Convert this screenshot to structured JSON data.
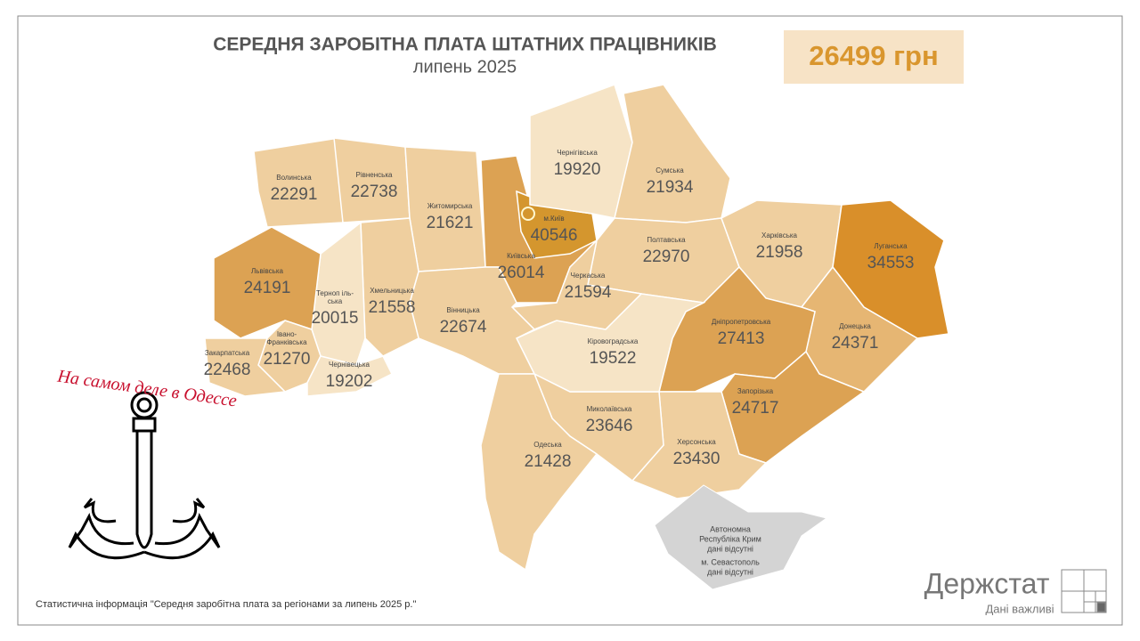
{
  "header": {
    "title": "СЕРЕДНЯ ЗАРОБІТНА ПЛАТА ШТАТНИХ ПРАЦІВНИКІВ",
    "subtitle": "липень 2025",
    "national_value": "26499 грн"
  },
  "regions": [
    {
      "name": [
        "Волинська"
      ],
      "value": 22291,
      "color": "#efcf9f"
    },
    {
      "name": [
        "Рівненська"
      ],
      "value": 22738,
      "color": "#efcf9f"
    },
    {
      "name": [
        "Житомирська"
      ],
      "value": 21621,
      "color": "#efcf9f"
    },
    {
      "name": [
        "Київська"
      ],
      "value": 26014,
      "color": "#dca253"
    },
    {
      "name": [
        "м.Київ"
      ],
      "value": 40546,
      "color": "#d4962e"
    },
    {
      "name": [
        "Чернігівська"
      ],
      "value": 19920,
      "color": "#f6e4c6"
    },
    {
      "name": [
        "Сумська"
      ],
      "value": 21934,
      "color": "#efcf9f"
    },
    {
      "name": [
        "Полтавська"
      ],
      "value": 22970,
      "color": "#efcf9f"
    },
    {
      "name": [
        "Харківська"
      ],
      "value": 21958,
      "color": "#efcf9f"
    },
    {
      "name": [
        "Луганська"
      ],
      "value": 34553,
      "color": "#d98f2a"
    },
    {
      "name": [
        "Донецька"
      ],
      "value": 24371,
      "color": "#e6b673"
    },
    {
      "name": [
        "Дніпропетровська"
      ],
      "value": 27413,
      "color": "#dca253"
    },
    {
      "name": [
        "Запорізька"
      ],
      "value": 24717,
      "color": "#dca253"
    },
    {
      "name": [
        "Херсонська"
      ],
      "value": 23430,
      "color": "#efcf9f"
    },
    {
      "name": [
        "Миколаївська"
      ],
      "value": 23646,
      "color": "#efcf9f"
    },
    {
      "name": [
        "Кіровоградська"
      ],
      "value": 19522,
      "color": "#f6e4c6"
    },
    {
      "name": [
        "Черкаська"
      ],
      "value": 21594,
      "color": "#efcf9f"
    },
    {
      "name": [
        "Вінницька"
      ],
      "value": 22674,
      "color": "#efcf9f"
    },
    {
      "name": [
        "Одеська"
      ],
      "value": 21428,
      "color": "#efcf9f"
    },
    {
      "name": [
        "Хмельницька"
      ],
      "value": 21558,
      "color": "#efcf9f"
    },
    {
      "name": [
        "Терноп іль-",
        "ська"
      ],
      "value": 20015,
      "color": "#f6e4c6"
    },
    {
      "name": [
        "Львівська"
      ],
      "value": 24191,
      "color": "#dca253"
    },
    {
      "name": [
        "Івано-",
        "Франківська"
      ],
      "value": 21270,
      "color": "#efcf9f"
    },
    {
      "name": [
        "Закарпатська"
      ],
      "value": 22468,
      "color": "#efcf9f"
    },
    {
      "name": [
        "Чернівецька"
      ],
      "value": 19202,
      "color": "#f6e4c6"
    }
  ],
  "crimea": {
    "lines": [
      "Автономна",
      "Республіка Крим",
      "дані відсутні",
      "м. Севастополь",
      "дані відсутні"
    ]
  },
  "overlay": {
    "caption": "На самом деле в Одессе"
  },
  "footer": {
    "source": "Статистична інформація \"Середня заробітна плата за регіонами за липень 2025 р.\"",
    "logo": "Держстат",
    "slogan": "Дані важливі"
  }
}
